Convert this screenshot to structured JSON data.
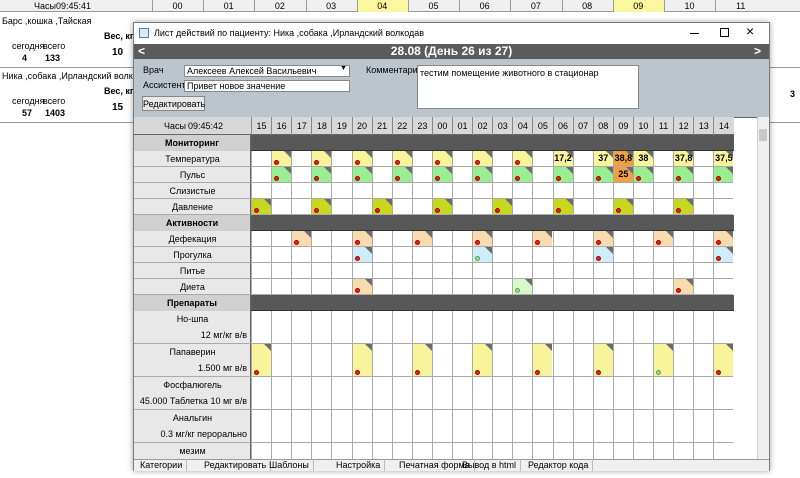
{
  "background": {
    "clock_label": "Часы",
    "clock": "09:45:41",
    "hours": [
      "00",
      "01",
      "02",
      "03",
      "04",
      "05",
      "06",
      "07",
      "08",
      "09",
      "10",
      "11"
    ],
    "patients": [
      {
        "name": "Барс ,кошка ,Тайская",
        "today_label": "сегодня",
        "total_label": "всего",
        "today": "4",
        "total": "133",
        "weight_label": "Вес, кг",
        "weight": "10"
      },
      {
        "name": "Ника ,собака ,Ирландский волкодав",
        "today_label": "сегодня",
        "total_label": "всего",
        "today": "57",
        "total": "1403",
        "weight_label": "Вес, кг",
        "weight": "15"
      }
    ],
    "right_value": "3"
  },
  "dialog": {
    "title": "Лист действий по пациенту: Ника ,собака ,Ирландский волкодав",
    "prev": "<",
    "next": ">",
    "date": "28.08 (День 26 из 27)",
    "doctor_label": "Врач",
    "doctor": "Алексеев Алексей Васильевич",
    "assistant_label": "Ассистент",
    "assistant": "Привет новое значение",
    "comment_label": "Комментарий",
    "comment": "тестим помещение животного в стационар",
    "edit_button": "Редактировать",
    "clock_label": "Часы",
    "clock": "09:45:42",
    "hours": [
      "15",
      "16",
      "17",
      "18",
      "19",
      "20",
      "21",
      "22",
      "23",
      "00",
      "01",
      "02",
      "03",
      "04",
      "05",
      "06",
      "07",
      "08",
      "09",
      "10",
      "11",
      "12",
      "13",
      "14"
    ],
    "sections": [
      {
        "title": "Мониторинг",
        "rows": [
          {
            "name": "Температура",
            "color": "#f8f49c",
            "cells": [
              {
                "hour": "16"
              },
              {
                "hour": "18"
              },
              {
                "hour": "20"
              },
              {
                "hour": "22"
              },
              {
                "hour": "00"
              },
              {
                "hour": "02"
              },
              {
                "hour": "04"
              },
              {
                "hour": "06",
                "text": "17,2"
              },
              {
                "hour": "08",
                "text": "37"
              },
              {
                "hour": "09",
                "text": "38,8",
                "color": "#f0a040"
              },
              {
                "hour": "10",
                "text": "38"
              },
              {
                "hour": "12",
                "text": "37,8"
              },
              {
                "hour": "14",
                "text": "37,5"
              }
            ]
          },
          {
            "name": "Пульс",
            "color": "#98ee90",
            "cells": [
              {
                "hour": "16"
              },
              {
                "hour": "18"
              },
              {
                "hour": "20"
              },
              {
                "hour": "22"
              },
              {
                "hour": "00"
              },
              {
                "hour": "02"
              },
              {
                "hour": "04"
              },
              {
                "hour": "06"
              },
              {
                "hour": "08"
              },
              {
                "hour": "09",
                "text": "25",
                "color": "#f0a040"
              },
              {
                "hour": "10"
              },
              {
                "hour": "12"
              },
              {
                "hour": "14"
              }
            ]
          },
          {
            "name": "Слизистые",
            "color": "#ffffff",
            "cells": []
          },
          {
            "name": "Давление",
            "color": "#c8d820",
            "cells": [
              {
                "hour": "15"
              },
              {
                "hour": "18"
              },
              {
                "hour": "21"
              },
              {
                "hour": "00"
              },
              {
                "hour": "03"
              },
              {
                "hour": "06"
              },
              {
                "hour": "09"
              },
              {
                "hour": "12"
              }
            ]
          }
        ]
      },
      {
        "title": "Активности",
        "rows": [
          {
            "name": "Дефекация",
            "color": "#f8dcb0",
            "cells": [
              {
                "hour": "17"
              },
              {
                "hour": "20"
              },
              {
                "hour": "23"
              },
              {
                "hour": "02"
              },
              {
                "hour": "05"
              },
              {
                "hour": "08"
              },
              {
                "hour": "11"
              },
              {
                "hour": "14"
              }
            ]
          },
          {
            "name": "Прогулка",
            "color": "#cdeef8",
            "cells": [
              {
                "hour": "20"
              },
              {
                "hour": "02",
                "dot": "#90e090"
              },
              {
                "hour": "08"
              },
              {
                "hour": "14"
              }
            ]
          },
          {
            "name": "Питье",
            "color": "#ffffff",
            "cells": []
          },
          {
            "name": "Диета",
            "color": "#f8dcb0",
            "cells": [
              {
                "hour": "20"
              },
              {
                "hour": "04",
                "dot": "#90e090",
                "color": "#d8f8c8"
              },
              {
                "hour": "12"
              }
            ]
          }
        ]
      },
      {
        "title": "Препараты",
        "rows": [
          {
            "name": "Но-шпа",
            "dose": "12 мг/кг в/в",
            "color": "#ffffff",
            "cells": []
          },
          {
            "name": "Папаверин",
            "dose": "1.500 мг в/в",
            "color": "#f8f49c",
            "cells": [
              {
                "hour": "15"
              },
              {
                "hour": "20"
              },
              {
                "hour": "23"
              },
              {
                "hour": "02"
              },
              {
                "hour": "05"
              },
              {
                "hour": "08"
              },
              {
                "hour": "11",
                "dot": "#90e090"
              },
              {
                "hour": "14"
              }
            ]
          },
          {
            "name": "Фосфалюгель",
            "dose": "45.000 Таблетка 10 мг в/в",
            "color": "#ffffff",
            "cells": []
          },
          {
            "name": "Анальгин",
            "dose": "0.3 мг/кг перорально",
            "color": "#ffffff",
            "cells": []
          },
          {
            "name": "мезим",
            "color": "#ffffff",
            "cells": []
          }
        ]
      }
    ],
    "footer": [
      "Категории",
      "Редактировать",
      "Шаблоны",
      "Настройка",
      "Печатная форма",
      "Вывод в html",
      "Редактор кода"
    ]
  }
}
